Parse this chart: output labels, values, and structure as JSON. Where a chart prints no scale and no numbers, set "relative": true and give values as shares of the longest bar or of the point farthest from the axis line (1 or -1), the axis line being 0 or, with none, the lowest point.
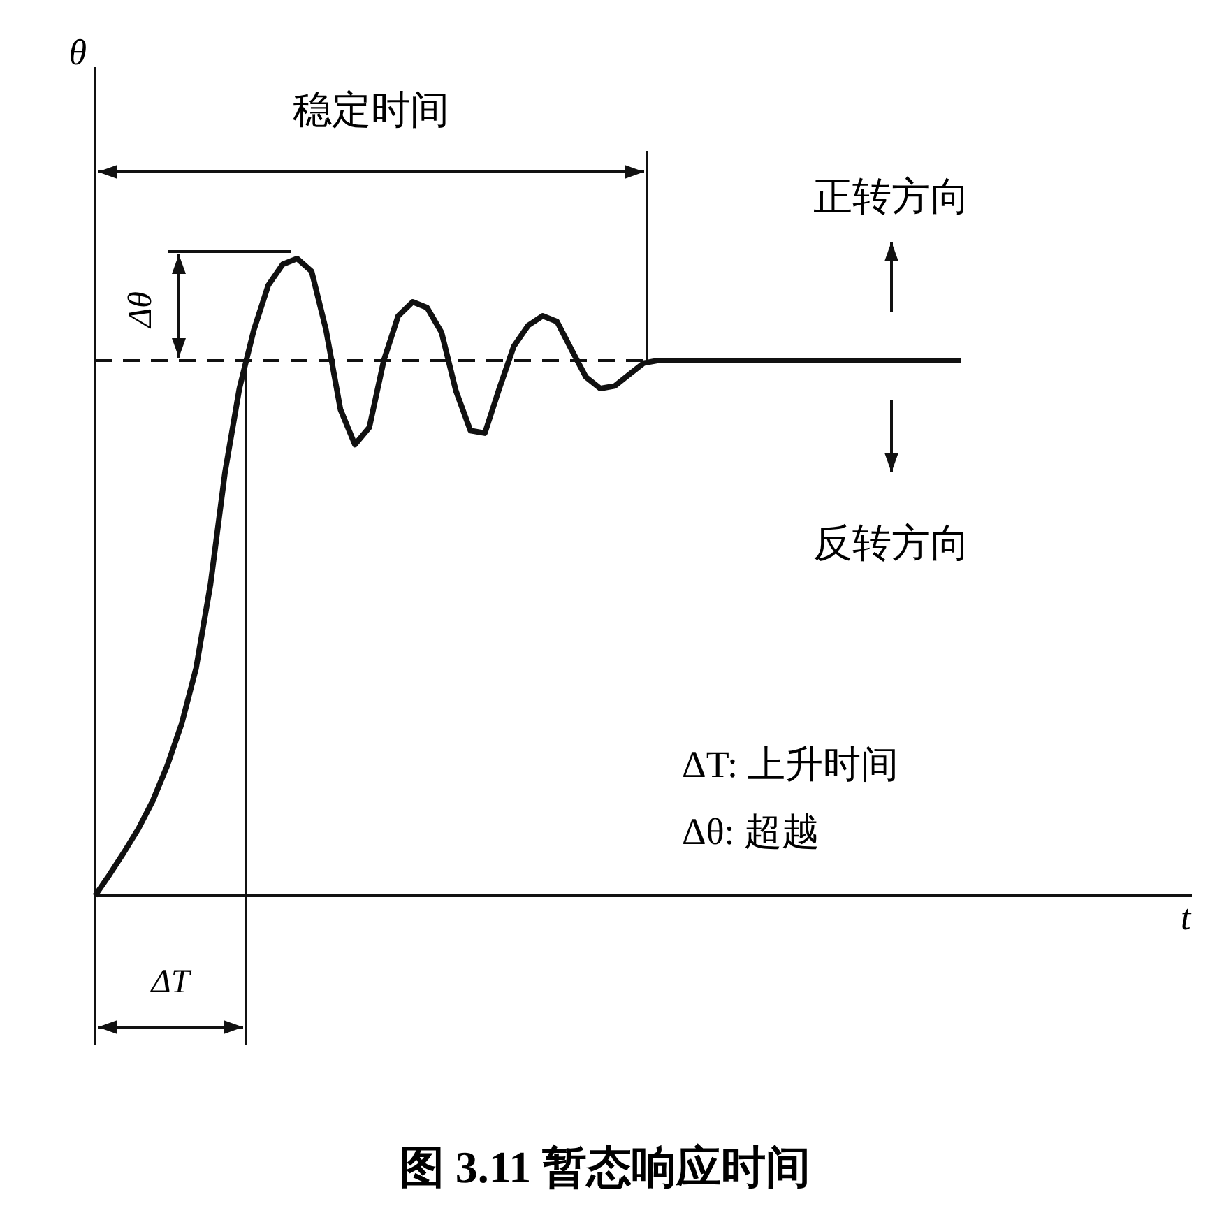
{
  "chart_data": {
    "type": "line",
    "relative": true,
    "title": "图 3.11 暂态响应时间",
    "categories": [
      null,
      null,
      null,
      null,
      null,
      null,
      null,
      null,
      null,
      null,
      null,
      null,
      null,
      null,
      null,
      null,
      null,
      null,
      null,
      null,
      null,
      null,
      null,
      null,
      null,
      null,
      null,
      null,
      null,
      null,
      null,
      null,
      null,
      null,
      null,
      null,
      null,
      null,
      null,
      null,
      null,
      null,
      null,
      null,
      null,
      null,
      null,
      null,
      null,
      null,
      null,
      null,
      null,
      null,
      null,
      null,
      null,
      null,
      null,
      null,
      null
    ],
    "series": [
      {
        "color": "#111111",
        "values": [
          0,
          0.033,
          0.068,
          0.105,
          0.149,
          0.204,
          0.27,
          0.357,
          0.489,
          0.664,
          0.796,
          0.888,
          0.958,
          0.991,
          1,
          0.98,
          0.888,
          0.763,
          0.708,
          0.735,
          0.84,
          0.91,
          0.932,
          0.923,
          0.884,
          0.792,
          0.73,
          0.726,
          0.796,
          0.862,
          0.895,
          0.91,
          0.901,
          0.857,
          0.814,
          0.796,
          0.8,
          0.818,
          0.836,
          0.84,
          0.84,
          0.84,
          0.84,
          0.84,
          0.84,
          0.84,
          0.84,
          0.84,
          0.84,
          0.84,
          0.84,
          0.84,
          0.84,
          0.84,
          0.84,
          0.84,
          0.84,
          0.84,
          0.84,
          0.84,
          0.84
        ]
      }
    ],
    "ref_lines": [
      {
        "axis": "y",
        "value": 0.84,
        "line_style": "dashed",
        "color": "#111111"
      }
    ],
    "annotations": [
      "稳定时间",
      "ΔT",
      "Δθ",
      "正转方向",
      "反转方向",
      "ΔT: 上升时间",
      "Δθ: 超越",
      "θ",
      "t"
    ]
  }
}
